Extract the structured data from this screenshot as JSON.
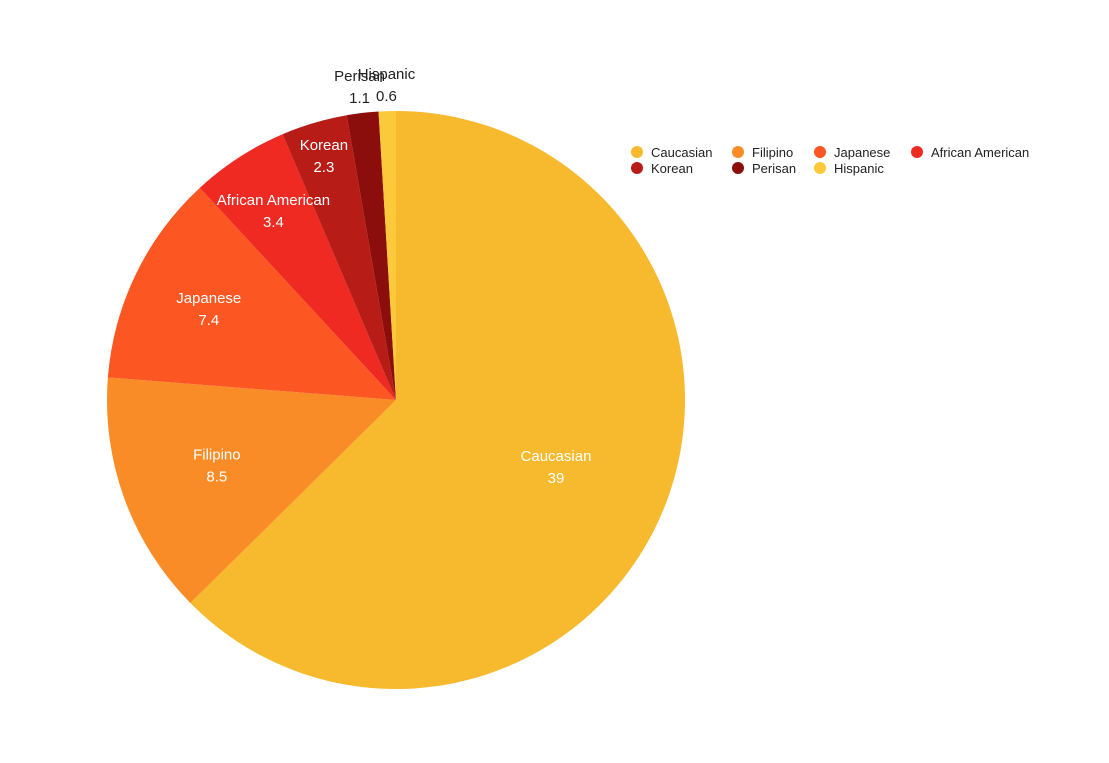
{
  "chart_data": {
    "type": "pie",
    "title": "",
    "slices": [
      {
        "label": "Caucasian",
        "value": 39,
        "value_text": "39",
        "color": "#F7B92D"
      },
      {
        "label": "Filipino",
        "value": 8.5,
        "value_text": "8.5",
        "color": "#FA8C28"
      },
      {
        "label": "Japanese",
        "value": 7.4,
        "value_text": "7.4",
        "color": "#FC5722"
      },
      {
        "label": "African American",
        "value": 3.4,
        "value_text": "3.4",
        "color": "#EE2A22"
      },
      {
        "label": "Korean",
        "value": 2.3,
        "value_text": "2.3",
        "color": "#B71C16"
      },
      {
        "label": "Perisan",
        "value": 1.1,
        "value_text": "1.1",
        "color": "#8B0E0C"
      },
      {
        "label": "Hispanic",
        "value": 0.6,
        "value_text": "0.6",
        "color": "#FBC93A"
      }
    ],
    "legend": {
      "position": "top-right"
    }
  }
}
